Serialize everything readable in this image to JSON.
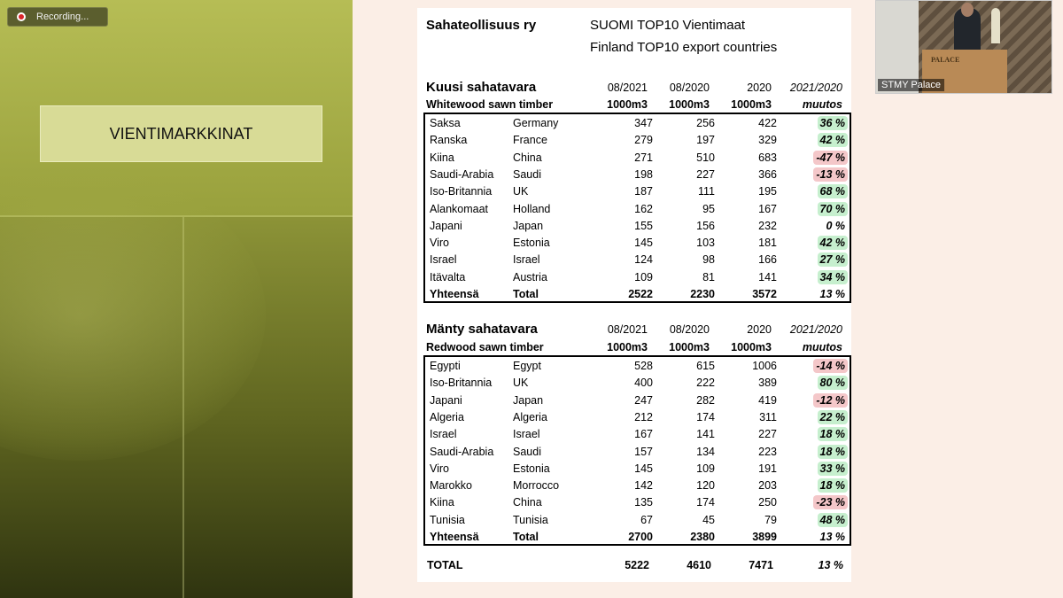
{
  "recording": {
    "label": "Recording..."
  },
  "slide_title": "VIENTIMARKKINAT",
  "webcam": {
    "name": "STMY Palace",
    "podium_text": "PALACE"
  },
  "header": {
    "org": "Sahateollisuus ry",
    "line1": "SUOMI TOP10 Vientimaat",
    "line2": "Finland TOP10 export countries"
  },
  "spruce": {
    "title": "Kuusi sahatavara",
    "subtitle": "Whitewood sawn timber",
    "col_headers": [
      "08/2021",
      "08/2020",
      "2020",
      "2021/2020"
    ],
    "unit_headers": [
      "1000m3",
      "1000m3",
      "1000m3",
      "muutos"
    ],
    "rows": [
      {
        "fi": "Saksa",
        "en": "Germany",
        "v1": "347",
        "v2": "256",
        "v3": "422",
        "ch": "36 %",
        "sign": "pos"
      },
      {
        "fi": "Ranska",
        "en": "France",
        "v1": "279",
        "v2": "197",
        "v3": "329",
        "ch": "42 %",
        "sign": "pos"
      },
      {
        "fi": "Kiina",
        "en": "China",
        "v1": "271",
        "v2": "510",
        "v3": "683",
        "ch": "-47 %",
        "sign": "neg"
      },
      {
        "fi": "Saudi-Arabia",
        "en": "Saudi",
        "v1": "198",
        "v2": "227",
        "v3": "366",
        "ch": "-13 %",
        "sign": "neg"
      },
      {
        "fi": "Iso-Britannia",
        "en": "UK",
        "v1": "187",
        "v2": "111",
        "v3": "195",
        "ch": "68 %",
        "sign": "pos"
      },
      {
        "fi": "Alankomaat",
        "en": "Holland",
        "v1": "162",
        "v2": "95",
        "v3": "167",
        "ch": "70 %",
        "sign": "pos"
      },
      {
        "fi": "Japani",
        "en": "Japan",
        "v1": "155",
        "v2": "156",
        "v3": "232",
        "ch": "0 %",
        "sign": "neu"
      },
      {
        "fi": "Viro",
        "en": "Estonia",
        "v1": "145",
        "v2": "103",
        "v3": "181",
        "ch": "42 %",
        "sign": "pos"
      },
      {
        "fi": "Israel",
        "en": "Israel",
        "v1": "124",
        "v2": "98",
        "v3": "166",
        "ch": "27 %",
        "sign": "pos"
      },
      {
        "fi": "Itävalta",
        "en": "Austria",
        "v1": "109",
        "v2": "81",
        "v3": "141",
        "ch": "34 %",
        "sign": "pos"
      }
    ],
    "total": {
      "fi": "Yhteensä",
      "en": "Total",
      "v1": "2522",
      "v2": "2230",
      "v3": "3572",
      "ch": "13 %"
    }
  },
  "pine": {
    "title": "Mänty sahatavara",
    "subtitle": "Redwood sawn timber",
    "col_headers": [
      "08/2021",
      "08/2020",
      "2020",
      "2021/2020"
    ],
    "unit_headers": [
      "1000m3",
      "1000m3",
      "1000m3",
      "muutos"
    ],
    "rows": [
      {
        "fi": "Egypti",
        "en": "Egypt",
        "v1": "528",
        "v2": "615",
        "v3": "1006",
        "ch": "-14 %",
        "sign": "neg"
      },
      {
        "fi": "Iso-Britannia",
        "en": "UK",
        "v1": "400",
        "v2": "222",
        "v3": "389",
        "ch": "80 %",
        "sign": "pos"
      },
      {
        "fi": "Japani",
        "en": "Japan",
        "v1": "247",
        "v2": "282",
        "v3": "419",
        "ch": "-12 %",
        "sign": "neg"
      },
      {
        "fi": "Algeria",
        "en": "Algeria",
        "v1": "212",
        "v2": "174",
        "v3": "311",
        "ch": "22 %",
        "sign": "pos"
      },
      {
        "fi": "Israel",
        "en": "Israel",
        "v1": "167",
        "v2": "141",
        "v3": "227",
        "ch": "18 %",
        "sign": "pos"
      },
      {
        "fi": "Saudi-Arabia",
        "en": "Saudi",
        "v1": "157",
        "v2": "134",
        "v3": "223",
        "ch": "18 %",
        "sign": "pos"
      },
      {
        "fi": "Viro",
        "en": "Estonia",
        "v1": "145",
        "v2": "109",
        "v3": "191",
        "ch": "33 %",
        "sign": "pos"
      },
      {
        "fi": "Marokko",
        "en": "Morrocco",
        "v1": "142",
        "v2": "120",
        "v3": "203",
        "ch": "18 %",
        "sign": "pos"
      },
      {
        "fi": "Kiina",
        "en": "China",
        "v1": "135",
        "v2": "174",
        "v3": "250",
        "ch": "-23 %",
        "sign": "neg"
      },
      {
        "fi": "Tunisia",
        "en": "Tunisia",
        "v1": "67",
        "v2": "45",
        "v3": "79",
        "ch": "48 %",
        "sign": "pos"
      }
    ],
    "total": {
      "fi": "Yhteensä",
      "en": "Total",
      "v1": "2700",
      "v2": "2380",
      "v3": "3899",
      "ch": "13 %"
    }
  },
  "grand_total": {
    "label": "TOTAL",
    "v1": "5222",
    "v2": "4610",
    "v3": "7471",
    "ch": "13 %"
  },
  "colors": {
    "positive": "#c6efce",
    "negative": "#f4c7c9",
    "accent": "#a7ae4a"
  }
}
